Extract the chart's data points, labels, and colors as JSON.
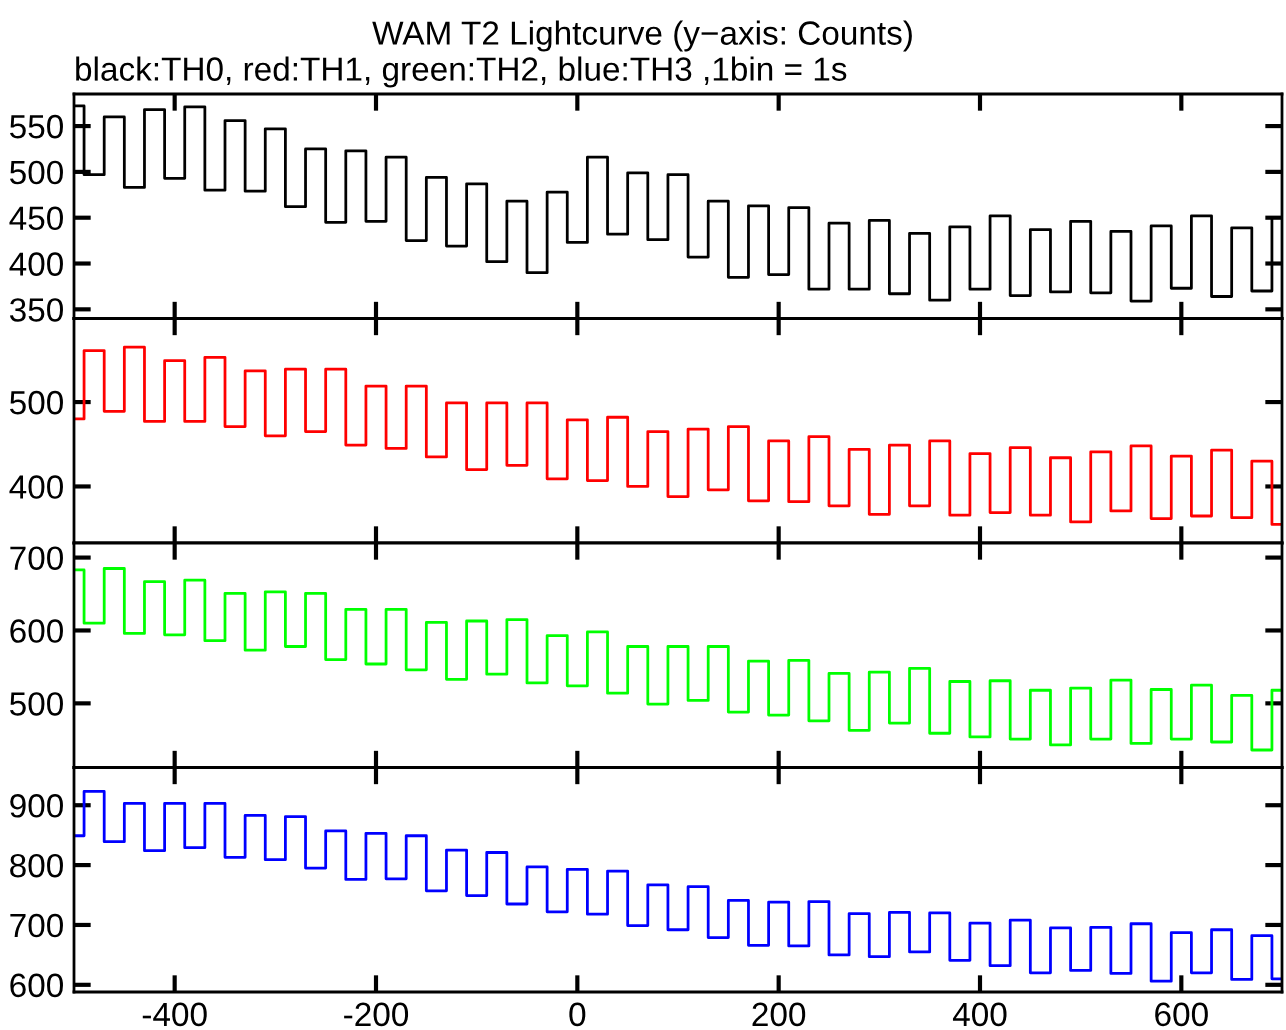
{
  "chart_data": [
    {
      "type": "step",
      "title": "WAM T2 Lightcurve (y−axis: Counts)",
      "subtitle": "black:TH0, red:TH1, green:TH2, blue:TH3 ,1bin = 1s",
      "x": [
        -500,
        -480,
        -460,
        -440,
        -420,
        -400,
        -380,
        -360,
        -340,
        -320,
        -300,
        -280,
        -260,
        -240,
        -220,
        -200,
        -180,
        -160,
        -140,
        -120,
        -100,
        -80,
        -60,
        -40,
        -20,
        0,
        20,
        40,
        60,
        80,
        100,
        120,
        140,
        160,
        180,
        200,
        220,
        240,
        260,
        280,
        300,
        320,
        340,
        360,
        380,
        400,
        420,
        440,
        460,
        480,
        500,
        520,
        540,
        560,
        580,
        600,
        620,
        640,
        660,
        680,
        700
      ],
      "series": [
        {
          "color": "#000000",
          "values": [
            572,
            497,
            560,
            483,
            568,
            493,
            571,
            480,
            556,
            479,
            547,
            462,
            525,
            445,
            523,
            446,
            516,
            425,
            494,
            419,
            487,
            402,
            468,
            390,
            478,
            423,
            516,
            432,
            499,
            426,
            497,
            407,
            468,
            385,
            463,
            388,
            461,
            372,
            444,
            372,
            447,
            367,
            433,
            360,
            440,
            372,
            452,
            365,
            437,
            369,
            446,
            368,
            435,
            359,
            441,
            373,
            452,
            364,
            439,
            370,
            450
          ]
        }
      ],
      "xlim": [
        -500,
        700
      ],
      "xticks": [
        {
          "value": -400,
          "label": null
        },
        {
          "value": -200,
          "label": null
        },
        {
          "value": 0,
          "label": null
        },
        {
          "value": 200,
          "label": null
        },
        {
          "value": 400,
          "label": null
        },
        {
          "value": 600,
          "label": null
        }
      ],
      "ylim": [
        340,
        585
      ],
      "yticks": [
        350,
        400,
        450,
        500,
        550
      ],
      "tick_labels": "y",
      "grid": false,
      "legend": false
    },
    {
      "type": "step",
      "x": [
        -500,
        -480,
        -460,
        -440,
        -420,
        -400,
        -380,
        -360,
        -340,
        -320,
        -300,
        -280,
        -260,
        -240,
        -220,
        -200,
        -180,
        -160,
        -140,
        -120,
        -100,
        -80,
        -60,
        -40,
        -20,
        0,
        20,
        40,
        60,
        80,
        100,
        120,
        140,
        160,
        180,
        200,
        220,
        240,
        260,
        280,
        300,
        320,
        340,
        360,
        380,
        400,
        420,
        440,
        460,
        480,
        500,
        520,
        540,
        560,
        580,
        600,
        620,
        640,
        660,
        680,
        700
      ],
      "series": [
        {
          "color": "#ff0000",
          "values": [
            480,
            561,
            489,
            565,
            477,
            549,
            477,
            553,
            471,
            537,
            460,
            539,
            465,
            539,
            449,
            519,
            445,
            519,
            435,
            499,
            420,
            499,
            425,
            499,
            409,
            479,
            407,
            482,
            400,
            465,
            388,
            468,
            396,
            471,
            383,
            454,
            382,
            459,
            377,
            444,
            367,
            449,
            377,
            454,
            366,
            439,
            369,
            446,
            366,
            434,
            358,
            441,
            371,
            448,
            362,
            436,
            365,
            443,
            363,
            430,
            355
          ]
        }
      ],
      "xlim": [
        -500,
        700
      ],
      "xticks": [
        {
          "value": -400,
          "label": null
        },
        {
          "value": -200,
          "label": null
        },
        {
          "value": 0,
          "label": null
        },
        {
          "value": 200,
          "label": null
        },
        {
          "value": 400,
          "label": null
        },
        {
          "value": 600,
          "label": null
        }
      ],
      "ylim": [
        333,
        599
      ],
      "yticks": [
        400,
        500
      ],
      "tick_labels": "y",
      "grid": false,
      "legend": false
    },
    {
      "type": "step",
      "x": [
        -500,
        -480,
        -460,
        -440,
        -420,
        -400,
        -380,
        -360,
        -340,
        -320,
        -300,
        -280,
        -260,
        -240,
        -220,
        -200,
        -180,
        -160,
        -140,
        -120,
        -100,
        -80,
        -60,
        -40,
        -20,
        0,
        20,
        40,
        60,
        80,
        100,
        120,
        140,
        160,
        180,
        200,
        220,
        240,
        260,
        280,
        300,
        320,
        340,
        360,
        380,
        400,
        420,
        440,
        460,
        480,
        500,
        520,
        540,
        560,
        580,
        600,
        620,
        640,
        660,
        680,
        700
      ],
      "series": [
        {
          "color": "#00ff00",
          "values": [
            683,
            610,
            685,
            596,
            667,
            594,
            669,
            586,
            651,
            573,
            653,
            578,
            651,
            560,
            629,
            554,
            629,
            546,
            611,
            533,
            613,
            540,
            615,
            528,
            593,
            524,
            598,
            514,
            578,
            499,
            578,
            504,
            578,
            488,
            558,
            484,
            559,
            476,
            541,
            463,
            543,
            473,
            548,
            459,
            530,
            454,
            531,
            451,
            518,
            443,
            521,
            451,
            532,
            445,
            519,
            451,
            525,
            447,
            511,
            436,
            518
          ]
        }
      ],
      "xlim": [
        -500,
        700
      ],
      "xticks": [
        {
          "value": -400,
          "label": null
        },
        {
          "value": -200,
          "label": null
        },
        {
          "value": 0,
          "label": null
        },
        {
          "value": 200,
          "label": null
        },
        {
          "value": 400,
          "label": null
        },
        {
          "value": 600,
          "label": null
        }
      ],
      "ylim": [
        412,
        720
      ],
      "yticks": [
        500,
        600,
        700
      ],
      "tick_labels": "y",
      "grid": false,
      "legend": false
    },
    {
      "type": "step",
      "x": [
        -500,
        -480,
        -460,
        -440,
        -420,
        -400,
        -380,
        -360,
        -340,
        -320,
        -300,
        -280,
        -260,
        -240,
        -220,
        -200,
        -180,
        -160,
        -140,
        -120,
        -100,
        -80,
        -60,
        -40,
        -20,
        0,
        20,
        40,
        60,
        80,
        100,
        120,
        140,
        160,
        180,
        200,
        220,
        240,
        260,
        280,
        300,
        320,
        340,
        360,
        380,
        400,
        420,
        440,
        460,
        480,
        500,
        520,
        540,
        560,
        580,
        600,
        620,
        640,
        660,
        680,
        700
      ],
      "series": [
        {
          "color": "#0000ff",
          "values": [
            849,
            923,
            839,
            903,
            824,
            903,
            829,
            903,
            813,
            883,
            809,
            881,
            795,
            857,
            776,
            853,
            777,
            849,
            757,
            825,
            749,
            821,
            735,
            797,
            722,
            793,
            718,
            790,
            699,
            767,
            692,
            764,
            679,
            741,
            666,
            738,
            665,
            739,
            650,
            719,
            647,
            721,
            655,
            720,
            641,
            703,
            632,
            708,
            620,
            695,
            624,
            696,
            619,
            702,
            606,
            687,
            620,
            692,
            609,
            682,
            610
          ]
        }
      ],
      "xlim": [
        -500,
        700
      ],
      "xticks": [
        -400,
        -200,
        0,
        200,
        400,
        600
      ],
      "ylim": [
        588,
        963
      ],
      "yticks": [
        600,
        700,
        800,
        900
      ],
      "grid": false,
      "legend": false
    }
  ]
}
